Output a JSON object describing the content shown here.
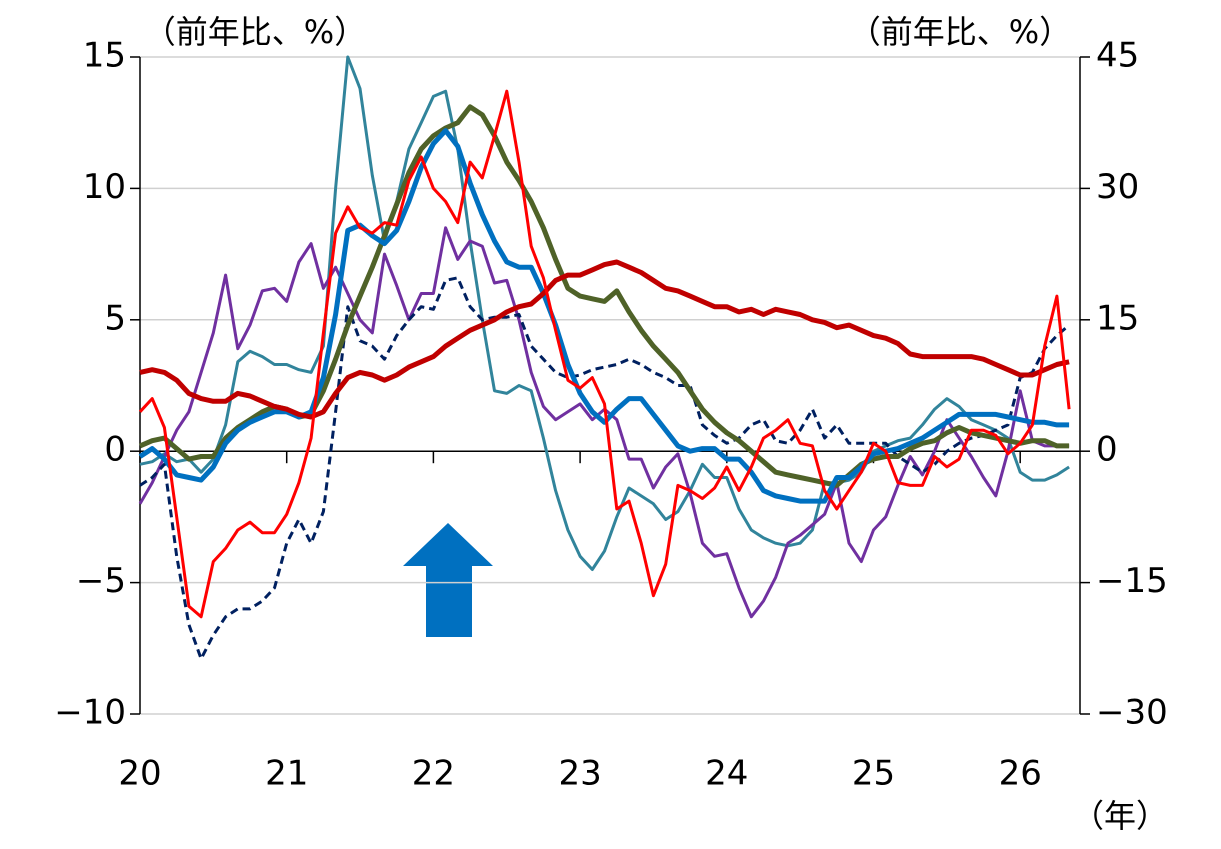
{
  "chart_data": {
    "type": "line",
    "y_label": "（前年比、%）",
    "y2_label": "（前年比、%）",
    "x_label": "（年）",
    "categories": [
      "20",
      null,
      null,
      null,
      null,
      null,
      null,
      null,
      null,
      null,
      null,
      null,
      "21",
      null,
      null,
      null,
      null,
      null,
      null,
      null,
      null,
      null,
      null,
      null,
      "22",
      null,
      null,
      null,
      null,
      null,
      null,
      null,
      null,
      null,
      null,
      null,
      "23",
      null,
      null,
      null,
      null,
      null,
      null,
      null,
      null,
      null,
      null,
      null,
      "24",
      null,
      null,
      null,
      null,
      null,
      null,
      null,
      null,
      null,
      null,
      null,
      "25",
      null,
      null,
      null,
      null,
      null,
      null,
      null,
      null,
      null,
      null,
      null,
      "26",
      null,
      null,
      null,
      null
    ],
    "ylim": [
      -10,
      15
    ],
    "yticks": [
      {
        "value": -10,
        "label": "−10"
      },
      {
        "value": -5,
        "label": "−5"
      },
      0,
      5,
      10,
      15
    ],
    "y2lim": [
      -30,
      45
    ],
    "y2ticks": [
      {
        "value": -30,
        "label": "−30"
      },
      {
        "value": -15,
        "label": "−15"
      },
      0,
      15,
      30,
      45
    ],
    "grid": true,
    "series": [
      {
        "color": "#31849b",
        "values": [
          -0.5,
          -0.4,
          -0.1,
          -0.4,
          -0.3,
          -0.8,
          -0.3,
          1.0,
          3.4,
          3.8,
          3.6,
          3.3,
          3.3,
          3.1,
          3.0,
          4.0,
          10.0,
          15.0,
          13.8,
          10.5,
          8.0,
          9.5,
          11.5,
          12.5,
          13.5,
          13.7,
          11.5,
          8.0,
          5.0,
          2.3,
          2.2,
          2.5,
          2.3,
          0.5,
          -1.5,
          -3.0,
          -4.0,
          -4.5,
          -3.8,
          -2.5,
          -1.4,
          -1.7,
          -2.0,
          -2.6,
          -2.3,
          -1.5,
          -0.5,
          -1.0,
          -1.0,
          -2.2,
          -3.0,
          -3.3,
          -3.5,
          -3.6,
          -3.5,
          -3.0,
          -1.2,
          -1.2,
          -1.1,
          -0.8,
          0.0,
          0.2,
          0.4,
          0.5,
          1.0,
          1.6,
          2.0,
          1.7,
          1.2,
          1.0,
          0.8,
          0.5,
          -0.8,
          -1.1,
          -1.1,
          -0.9,
          -0.6
        ]
      },
      {
        "color": "#7030a0",
        "values": [
          -2.0,
          -1.2,
          -0.2,
          0.8,
          1.5,
          3.0,
          4.5,
          6.7,
          3.9,
          4.8,
          6.1,
          6.2,
          5.7,
          7.2,
          7.9,
          6.2,
          7.0,
          6.0,
          5.0,
          4.5,
          7.5,
          6.3,
          5.0,
          6.0,
          6.0,
          8.5,
          7.3,
          8.0,
          7.8,
          6.4,
          6.5,
          5.0,
          3.0,
          1.7,
          1.2,
          1.5,
          1.8,
          1.2,
          1.6,
          1.2,
          -0.3,
          -0.3,
          -1.4,
          -0.6,
          -0.1,
          -1.6,
          -3.5,
          -4.0,
          -3.9,
          -5.2,
          -6.3,
          -5.7,
          -4.8,
          -3.5,
          -3.2,
          -2.8,
          -2.4,
          -1.2,
          -3.5,
          -4.2,
          -3.0,
          -2.5,
          -1.3,
          -0.2,
          -0.9,
          0.0,
          1.2,
          0.5,
          -0.2,
          -1.0,
          -1.7,
          0.0,
          2.3,
          0.4,
          0.2,
          0.2,
          0.2
        ]
      },
      {
        "color": "#002060",
        "linestyle": "dashed",
        "values": [
          -1.3,
          -1.0,
          -0.5,
          -4.0,
          -6.6,
          -7.9,
          -7.0,
          -6.3,
          -6.0,
          -6.0,
          -5.7,
          -5.2,
          -3.5,
          -2.6,
          -3.5,
          -2.3,
          1.5,
          5.5,
          4.2,
          4.0,
          3.5,
          4.4,
          5.0,
          5.5,
          5.4,
          6.5,
          6.6,
          5.5,
          5.0,
          5.1,
          5.1,
          5.2,
          4.0,
          3.5,
          3.0,
          2.8,
          2.9,
          3.1,
          3.2,
          3.3,
          3.5,
          3.3,
          3.0,
          2.8,
          2.5,
          2.5,
          1.0,
          0.6,
          0.3,
          0.5,
          1.0,
          1.2,
          0.4,
          0.3,
          0.8,
          1.6,
          0.5,
          1.0,
          0.3,
          0.3,
          0.3,
          0.3,
          -0.2,
          -0.5,
          -0.8,
          -0.5,
          0.0,
          0.3,
          0.5,
          0.6,
          0.8,
          1.0,
          2.8,
          3.0,
          3.9,
          4.4,
          4.8
        ]
      },
      {
        "color": "#4f6228",
        "values": [
          0.2,
          0.4,
          0.5,
          0.1,
          -0.3,
          -0.2,
          -0.2,
          0.5,
          0.9,
          1.2,
          1.5,
          1.7,
          1.6,
          1.3,
          1.4,
          2.3,
          3.5,
          4.8,
          5.9,
          7.0,
          8.2,
          9.4,
          10.6,
          11.5,
          12.0,
          12.3,
          12.5,
          13.1,
          12.8,
          12.0,
          11.0,
          10.3,
          9.5,
          8.5,
          7.3,
          6.2,
          5.9,
          5.8,
          5.7,
          6.1,
          5.3,
          4.6,
          4.0,
          3.5,
          3.0,
          2.3,
          1.6,
          1.1,
          0.7,
          0.4,
          0.0,
          -0.4,
          -0.8,
          -0.9,
          -1.0,
          -1.1,
          -1.2,
          -1.3,
          -0.9,
          -0.5,
          -0.3,
          -0.2,
          -0.2,
          0.1,
          0.3,
          0.4,
          0.7,
          0.9,
          0.7,
          0.6,
          0.5,
          0.4,
          0.3,
          0.4,
          0.4,
          0.2,
          0.2
        ]
      },
      {
        "color": "#0070c0",
        "values": [
          -0.2,
          0.1,
          -0.3,
          -0.9,
          -1.0,
          -1.1,
          -0.6,
          0.3,
          0.8,
          1.1,
          1.3,
          1.5,
          1.5,
          1.3,
          1.5,
          2.8,
          5.2,
          8.4,
          8.6,
          8.2,
          7.9,
          8.4,
          9.5,
          10.8,
          11.7,
          12.2,
          11.6,
          10.2,
          9.0,
          8.0,
          7.2,
          7.0,
          7.0,
          6.0,
          4.8,
          3.3,
          2.2,
          1.5,
          1.1,
          1.6,
          2.0,
          2.0,
          1.4,
          0.8,
          0.2,
          0.0,
          0.1,
          0.1,
          -0.3,
          -0.3,
          -0.8,
          -1.5,
          -1.7,
          -1.8,
          -1.9,
          -1.9,
          -1.9,
          -1.0,
          -1.0,
          -0.6,
          -0.1,
          0.0,
          0.1,
          0.3,
          0.5,
          0.8,
          1.1,
          1.4,
          1.4,
          1.4,
          1.4,
          1.3,
          1.2,
          1.1,
          1.1,
          1.0,
          1.0
        ]
      },
      {
        "color": "#c00000",
        "values": [
          3.0,
          3.1,
          3.0,
          2.7,
          2.2,
          2.0,
          1.9,
          1.9,
          2.2,
          2.1,
          1.9,
          1.7,
          1.6,
          1.4,
          1.3,
          1.5,
          2.2,
          2.8,
          3.0,
          2.9,
          2.7,
          2.9,
          3.2,
          3.4,
          3.6,
          4.0,
          4.3,
          4.6,
          4.8,
          5.0,
          5.3,
          5.5,
          5.6,
          6.0,
          6.5,
          6.7,
          6.7,
          6.9,
          7.1,
          7.2,
          7.0,
          6.8,
          6.5,
          6.2,
          6.1,
          5.9,
          5.7,
          5.5,
          5.5,
          5.3,
          5.4,
          5.2,
          5.4,
          5.3,
          5.2,
          5.0,
          4.9,
          4.7,
          4.8,
          4.6,
          4.4,
          4.3,
          4.1,
          3.7,
          3.6,
          3.6,
          3.6,
          3.6,
          3.6,
          3.5,
          3.3,
          3.1,
          2.9,
          2.9,
          3.1,
          3.3,
          3.4
        ]
      },
      {
        "color": "#ff0000",
        "values": [
          1.5,
          2.0,
          0.9,
          -2.5,
          -5.9,
          -6.3,
          -4.2,
          -3.7,
          -3.0,
          -2.7,
          -3.1,
          -3.1,
          -2.4,
          -1.2,
          0.5,
          4.5,
          8.3,
          9.3,
          8.5,
          8.3,
          8.7,
          8.6,
          10.3,
          11.2,
          10.0,
          9.5,
          8.7,
          11.0,
          10.4,
          12.0,
          13.7,
          11.0,
          7.8,
          6.6,
          4.6,
          2.7,
          2.4,
          2.8,
          1.8,
          -2.2,
          -1.9,
          -3.5,
          -5.5,
          -4.3,
          -1.3,
          -1.5,
          -1.8,
          -1.4,
          -0.6,
          -1.5,
          -0.6,
          0.5,
          0.8,
          1.2,
          0.3,
          0.2,
          -1.5,
          -2.2,
          -1.5,
          -0.8,
          0.3,
          0.0,
          -1.2,
          -1.3,
          -1.3,
          -0.2,
          -0.6,
          -0.3,
          0.8,
          0.8,
          0.6,
          -0.1,
          0.3,
          1.0,
          4.0,
          5.9,
          1.6
        ]
      }
    ]
  }
}
